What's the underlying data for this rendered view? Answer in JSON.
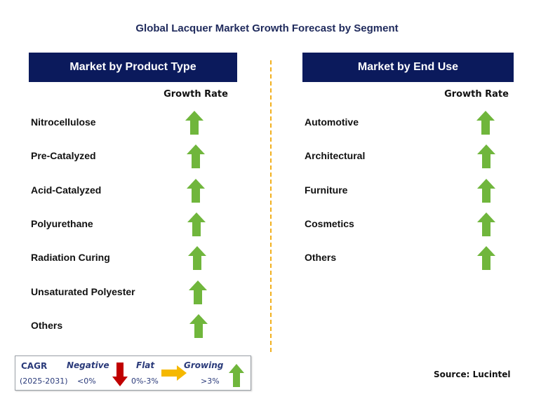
{
  "title": "Global Lacquer Market Growth Forecast by Segment",
  "left_panel": {
    "header": "Market by Product Type",
    "growth_label": "Growth Rate",
    "items": [
      {
        "label": "Nitrocellulose",
        "trend": "growing"
      },
      {
        "label": "Pre-Catalyzed",
        "trend": "growing"
      },
      {
        "label": "Acid-Catalyzed",
        "trend": "growing"
      },
      {
        "label": "Polyurethane",
        "trend": "growing"
      },
      {
        "label": "Radiation Curing",
        "trend": "growing"
      },
      {
        "label": "Unsaturated Polyester",
        "trend": "growing"
      },
      {
        "label": "Others",
        "trend": "growing"
      }
    ]
  },
  "right_panel": {
    "header": "Market by End Use",
    "growth_label": "Growth Rate",
    "items": [
      {
        "label": "Automotive",
        "trend": "growing"
      },
      {
        "label": "Architectural",
        "trend": "growing"
      },
      {
        "label": "Furniture",
        "trend": "growing"
      },
      {
        "label": "Cosmetics",
        "trend": "growing"
      },
      {
        "label": "Others",
        "trend": "growing"
      }
    ]
  },
  "legend": {
    "cagr": "CAGR",
    "period": "(2025-2031)",
    "negative": {
      "label": "Negative",
      "range": "<0%",
      "color": "#c00000",
      "icon": "down-arrow-icon"
    },
    "flat": {
      "label": "Flat",
      "range": "0%-3%",
      "color": "#f5b800",
      "icon": "right-arrow-icon"
    },
    "growing": {
      "label": "Growing",
      "range": ">3%",
      "color": "#70b63c",
      "icon": "up-arrow-icon"
    }
  },
  "source": "Source: Lucintel",
  "colors": {
    "header_bg": "#0b1a5c",
    "title": "#1f2a5c",
    "divider": "#f2b01e",
    "growing_arrow": "#70b63c"
  }
}
